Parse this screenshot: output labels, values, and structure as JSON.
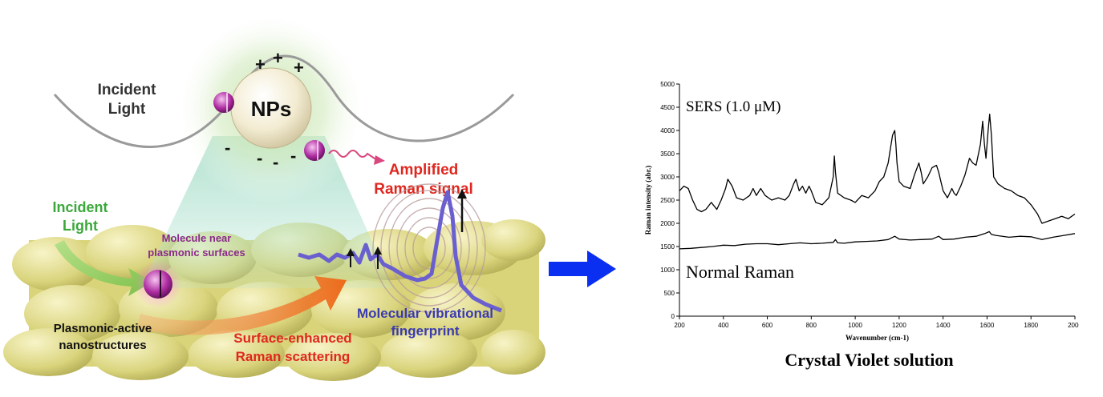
{
  "illustration": {
    "nps_label": "NPs",
    "incident_light_top": [
      "Incident",
      "Light"
    ],
    "incident_light_left": [
      "Incident",
      "Light"
    ],
    "amplified": [
      "Amplified",
      "Raman signal"
    ],
    "molecule_near": [
      "Molecule near",
      "plasmonic surfaces"
    ],
    "plasmonic_active": [
      "Plasmonic-active",
      "nanostructures"
    ],
    "sers_process": [
      "Surface-enhanced",
      "Raman scattering"
    ],
    "fingerprint": [
      "Molecular vibrational",
      "fingerprint"
    ],
    "plus_signs": [
      "+",
      "+",
      "+"
    ],
    "minus_signs": [
      "-",
      "-",
      "-",
      "-"
    ]
  },
  "chart_data": {
    "type": "line",
    "title": "Crystal Violet solution",
    "xlabel": "Wavenumber (cm-1)",
    "ylabel": "Raman intensity (abr.)",
    "xlim": [
      200,
      2000
    ],
    "ylim": [
      0,
      5000
    ],
    "xticks": [
      200,
      400,
      600,
      800,
      1000,
      1200,
      1400,
      1600,
      1800,
      2000
    ],
    "yticks": [
      0,
      500,
      1000,
      1500,
      2000,
      2500,
      3000,
      3500,
      4000,
      4500,
      5000
    ],
    "annotations": [
      "SERS (1.0  μM)",
      "Normal Raman"
    ],
    "series": [
      {
        "name": "SERS (1.0  μM)",
        "color": "#000000",
        "x": [
          200,
          220,
          240,
          260,
          280,
          300,
          320,
          345,
          370,
          390,
          410,
          420,
          440,
          460,
          490,
          520,
          535,
          550,
          570,
          590,
          620,
          650,
          680,
          700,
          720,
          730,
          745,
          760,
          775,
          790,
          800,
          820,
          850,
          880,
          900,
          905,
          910,
          920,
          950,
          980,
          1000,
          1030,
          1060,
          1090,
          1110,
          1130,
          1150,
          1160,
          1170,
          1180,
          1185,
          1190,
          1200,
          1220,
          1250,
          1270,
          1290,
          1300,
          1310,
          1330,
          1350,
          1370,
          1380,
          1390,
          1400,
          1420,
          1440,
          1450,
          1460,
          1480,
          1500,
          1520,
          1535,
          1550,
          1570,
          1580,
          1588,
          1595,
          1605,
          1612,
          1620,
          1630,
          1650,
          1680,
          1710,
          1740,
          1770,
          1800,
          1830,
          1850,
          1880,
          1910,
          1940,
          1970,
          2000
        ],
        "values": [
          2700,
          2800,
          2750,
          2500,
          2300,
          2250,
          2300,
          2450,
          2300,
          2500,
          2750,
          2950,
          2800,
          2550,
          2500,
          2600,
          2750,
          2600,
          2750,
          2600,
          2500,
          2550,
          2500,
          2600,
          2850,
          2950,
          2700,
          2800,
          2650,
          2800,
          2700,
          2450,
          2400,
          2550,
          3000,
          3450,
          3100,
          2650,
          2550,
          2500,
          2450,
          2600,
          2550,
          2700,
          2900,
          3000,
          3300,
          3600,
          3900,
          4000,
          3700,
          3300,
          2900,
          2800,
          2750,
          3050,
          3300,
          3100,
          2850,
          3000,
          3200,
          3250,
          3100,
          2900,
          2700,
          2550,
          2750,
          2650,
          2600,
          2800,
          3050,
          3400,
          3300,
          3250,
          3700,
          4200,
          3700,
          3400,
          4000,
          4350,
          3900,
          3000,
          2850,
          2750,
          2700,
          2600,
          2550,
          2400,
          2200,
          2000,
          2050,
          2100,
          2150,
          2100,
          2200
        ]
      },
      {
        "name": "Normal Raman",
        "color": "#000000",
        "x": [
          200,
          250,
          300,
          350,
          400,
          450,
          500,
          550,
          600,
          650,
          700,
          750,
          800,
          850,
          900,
          910,
          920,
          950,
          1000,
          1050,
          1100,
          1150,
          1180,
          1200,
          1250,
          1300,
          1350,
          1380,
          1400,
          1450,
          1500,
          1550,
          1590,
          1610,
          1620,
          1640,
          1700,
          1750,
          1800,
          1850,
          1900,
          1950,
          2000
        ],
        "values": [
          1450,
          1460,
          1480,
          1500,
          1530,
          1520,
          1550,
          1560,
          1560,
          1540,
          1560,
          1580,
          1560,
          1570,
          1590,
          1650,
          1580,
          1570,
          1600,
          1610,
          1620,
          1650,
          1720,
          1660,
          1640,
          1650,
          1660,
          1720,
          1650,
          1660,
          1700,
          1720,
          1780,
          1820,
          1760,
          1740,
          1700,
          1720,
          1710,
          1650,
          1700,
          1740,
          1780
        ]
      }
    ]
  }
}
